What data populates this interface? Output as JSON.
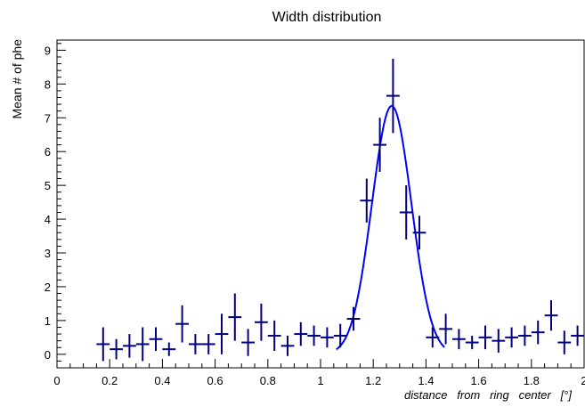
{
  "chart_data": {
    "type": "scatter",
    "title": "Width distribution",
    "xlabel": "distance   from   ring   center   [°]",
    "ylabel": "Mean # of phe",
    "xlim": [
      0,
      2
    ],
    "ylim": [
      -0.4,
      9.3
    ],
    "x_ticks": [
      "0",
      "0.2",
      "0.4",
      "0.6",
      "0.8",
      "1",
      "1.2",
      "1.4",
      "1.6",
      "1.8",
      "2"
    ],
    "y_ticks": [
      "0",
      "1",
      "2",
      "3",
      "4",
      "5",
      "6",
      "7",
      "8",
      "9"
    ],
    "grid": false,
    "legend": "none",
    "marker_color": "#00007f",
    "fit_color": "#0000ff",
    "bin_half_width": 0.025,
    "series": [
      {
        "values": [
          {
            "x": 0.175,
            "y": 0.3,
            "err": 0.5
          },
          {
            "x": 0.225,
            "y": 0.15,
            "err": 0.3
          },
          {
            "x": 0.275,
            "y": 0.25,
            "err": 0.35
          },
          {
            "x": 0.325,
            "y": 0.3,
            "err": 0.5
          },
          {
            "x": 0.375,
            "y": 0.45,
            "err": 0.35
          },
          {
            "x": 0.425,
            "y": 0.15,
            "err": 0.2
          },
          {
            "x": 0.475,
            "y": 0.9,
            "err": 0.55
          },
          {
            "x": 0.525,
            "y": 0.3,
            "err": 0.3
          },
          {
            "x": 0.575,
            "y": 0.3,
            "err": 0.3
          },
          {
            "x": 0.625,
            "y": 0.6,
            "err": 0.6
          },
          {
            "x": 0.675,
            "y": 1.1,
            "err": 0.7
          },
          {
            "x": 0.725,
            "y": 0.35,
            "err": 0.4
          },
          {
            "x": 0.775,
            "y": 0.95,
            "err": 0.55
          },
          {
            "x": 0.825,
            "y": 0.55,
            "err": 0.45
          },
          {
            "x": 0.875,
            "y": 0.25,
            "err": 0.3
          },
          {
            "x": 0.925,
            "y": 0.6,
            "err": 0.35
          },
          {
            "x": 0.975,
            "y": 0.55,
            "err": 0.3
          },
          {
            "x": 1.025,
            "y": 0.5,
            "err": 0.3
          },
          {
            "x": 1.075,
            "y": 0.55,
            "err": 0.35
          },
          {
            "x": 1.125,
            "y": 1.05,
            "err": 0.35
          },
          {
            "x": 1.175,
            "y": 4.55,
            "err": 0.65
          },
          {
            "x": 1.225,
            "y": 6.2,
            "err": 0.8
          },
          {
            "x": 1.275,
            "y": 7.65,
            "err": 1.1
          },
          {
            "x": 1.325,
            "y": 4.2,
            "err": 0.8
          },
          {
            "x": 1.375,
            "y": 3.6,
            "err": 0.5
          },
          {
            "x": 1.425,
            "y": 0.5,
            "err": 0.3
          },
          {
            "x": 1.475,
            "y": 0.75,
            "err": 0.45
          },
          {
            "x": 1.525,
            "y": 0.45,
            "err": 0.3
          },
          {
            "x": 1.575,
            "y": 0.35,
            "err": 0.2
          },
          {
            "x": 1.625,
            "y": 0.5,
            "err": 0.35
          },
          {
            "x": 1.675,
            "y": 0.4,
            "err": 0.35
          },
          {
            "x": 1.725,
            "y": 0.5,
            "err": 0.3
          },
          {
            "x": 1.775,
            "y": 0.55,
            "err": 0.3
          },
          {
            "x": 1.825,
            "y": 0.65,
            "err": 0.35
          },
          {
            "x": 1.875,
            "y": 1.15,
            "err": 0.45
          },
          {
            "x": 1.925,
            "y": 0.35,
            "err": 0.35
          },
          {
            "x": 1.975,
            "y": 0.55,
            "err": 0.3
          }
        ]
      }
    ],
    "fit": {
      "type": "gaussian",
      "amplitude": 7.35,
      "mean": 1.27,
      "sigma": 0.075,
      "x_range": [
        1.06,
        1.47
      ]
    }
  }
}
